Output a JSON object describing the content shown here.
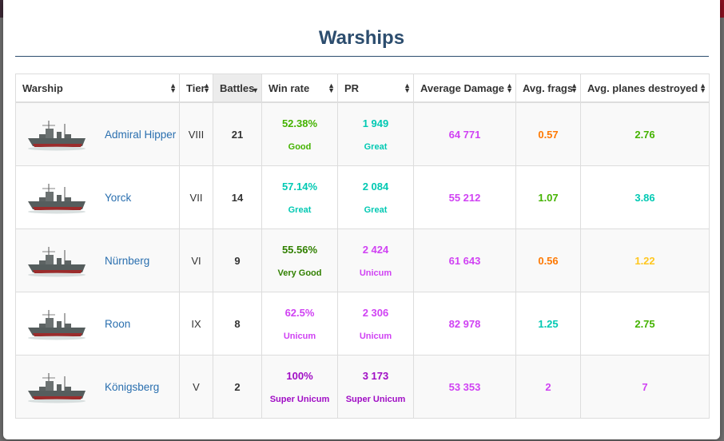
{
  "colors": {
    "good": "#44b300",
    "great": "#02c9b3",
    "very_good": "#318000",
    "unicum": "#d042f3",
    "super_unicum": "#a00dc5",
    "average": "#fe7903",
    "above_average": "#ffc71f",
    "header_title": "#2c4d6e",
    "link": "#2a6faf"
  },
  "modal": {
    "title": "Warships"
  },
  "table": {
    "columns": [
      "Warship",
      "Tier",
      "Battles",
      "Win rate",
      "PR",
      "Average Damage",
      "Avg. frags",
      "Avg. planes destroyed"
    ],
    "sorted_column": "Battles",
    "rows": [
      {
        "icon": "cruiser-ship-icon",
        "name": "Admiral Hipper",
        "tier": "VIII",
        "battles": "21",
        "winrate": "52.38%",
        "winrate_label": "Good",
        "winrate_color": "#44b300",
        "pr": "1 949",
        "pr_label": "Great",
        "pr_color": "#02c9b3",
        "avg_damage": "64 771",
        "avg_damage_color": "#d042f3",
        "avg_frags": "0.57",
        "avg_frags_color": "#fe7903",
        "avg_planes": "2.76",
        "avg_planes_color": "#44b300"
      },
      {
        "icon": "cruiser-ship-icon",
        "name": "Yorck",
        "tier": "VII",
        "battles": "14",
        "winrate": "57.14%",
        "winrate_label": "Great",
        "winrate_color": "#02c9b3",
        "pr": "2 084",
        "pr_label": "Great",
        "pr_color": "#02c9b3",
        "avg_damage": "55 212",
        "avg_damage_color": "#d042f3",
        "avg_frags": "1.07",
        "avg_frags_color": "#44b300",
        "avg_planes": "3.86",
        "avg_planes_color": "#02c9b3"
      },
      {
        "icon": "cruiser-ship-icon",
        "name": "Nürnberg",
        "tier": "VI",
        "battles": "9",
        "winrate": "55.56%",
        "winrate_label": "Very Good",
        "winrate_color": "#318000",
        "pr": "2 424",
        "pr_label": "Unicum",
        "pr_color": "#d042f3",
        "avg_damage": "61 643",
        "avg_damage_color": "#d042f3",
        "avg_frags": "0.56",
        "avg_frags_color": "#fe7903",
        "avg_planes": "1.22",
        "avg_planes_color": "#ffc71f"
      },
      {
        "icon": "cruiser-ship-icon",
        "name": "Roon",
        "tier": "IX",
        "battles": "8",
        "winrate": "62.5%",
        "winrate_label": "Unicum",
        "winrate_color": "#d042f3",
        "pr": "2 306",
        "pr_label": "Unicum",
        "pr_color": "#d042f3",
        "avg_damage": "82 978",
        "avg_damage_color": "#d042f3",
        "avg_frags": "1.25",
        "avg_frags_color": "#02c9b3",
        "avg_planes": "2.75",
        "avg_planes_color": "#44b300"
      },
      {
        "icon": "cruiser-ship-icon",
        "name": "Königsberg",
        "tier": "V",
        "battles": "2",
        "winrate": "100%",
        "winrate_label": "Super Unicum",
        "winrate_color": "#a00dc5",
        "pr": "3 173",
        "pr_label": "Super Unicum",
        "pr_color": "#a00dc5",
        "avg_damage": "53 353",
        "avg_damage_color": "#d042f3",
        "avg_frags": "2",
        "avg_frags_color": "#d042f3",
        "avg_planes": "7",
        "avg_planes_color": "#d042f3"
      }
    ]
  }
}
